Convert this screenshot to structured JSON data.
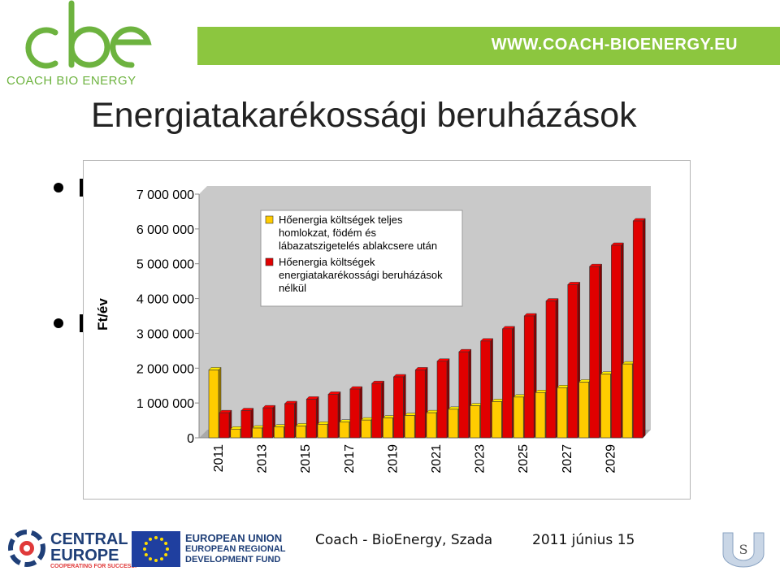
{
  "header": {
    "brand_name": "COACH BIO ENERGY",
    "site_url": "WWW.COACH-BIOENERGY.EU",
    "colors": {
      "brand_green": "#8cc63f",
      "logo_green": "#6db33f"
    }
  },
  "title": "Energiatakarékossági beruházások",
  "chart_data": {
    "type": "bar",
    "ylabel": "Ft/év",
    "ylim": [
      0,
      7000000
    ],
    "y_ticks": [
      "7 000 000",
      "6 000 000",
      "5 000 000",
      "4 000 000",
      "3 000 000",
      "2 000 000",
      "1 000 000",
      "0"
    ],
    "y_tick_values": [
      7000000,
      6000000,
      5000000,
      4000000,
      3000000,
      2000000,
      1000000,
      0
    ],
    "x_tick_labels": [
      "2011",
      "2013",
      "2015",
      "2017",
      "2019",
      "2021",
      "2023",
      "2025",
      "2027",
      "2029"
    ],
    "categories": [
      "2011",
      "2012",
      "2013",
      "2014",
      "2015",
      "2016",
      "2017",
      "2018",
      "2019",
      "2020",
      "2021",
      "2022",
      "2023",
      "2024",
      "2025",
      "2026",
      "2027",
      "2028",
      "2029",
      "2030"
    ],
    "grid": false,
    "legend_position": "top-left",
    "series": [
      {
        "name": "Hőenergia költségek teljes homlokzat, födém és lábazatszigetelés ablakcsere után",
        "color": "#ffcc00",
        "values": [
          1950000,
          250000,
          280000,
          310000,
          340000,
          390000,
          450000,
          510000,
          570000,
          640000,
          720000,
          820000,
          920000,
          1040000,
          1170000,
          1300000,
          1440000,
          1600000,
          1830000,
          2120000
        ]
      },
      {
        "name": "Hőenergia költségek energiatakarékossági beruházások nélkül",
        "color": "#e00000",
        "values": [
          720000,
          780000,
          860000,
          980000,
          1110000,
          1250000,
          1400000,
          1560000,
          1750000,
          1950000,
          2200000,
          2470000,
          2780000,
          3130000,
          3500000,
          3930000,
          4400000,
          4920000,
          5530000,
          6230000
        ]
      }
    ]
  },
  "footer": {
    "partner1_title": "CENTRAL",
    "partner1_title2": "EUROPE",
    "partner1_sub": "COOPERATING FOR SUCCESS.",
    "partner2_line1": "EUROPEAN UNION",
    "partner2_line2": "EUROPEAN REGIONAL",
    "partner2_line3": "DEVELOPMENT FUND",
    "event": "Coach - BioEnergy, Szada",
    "date": "2011 június 15"
  }
}
